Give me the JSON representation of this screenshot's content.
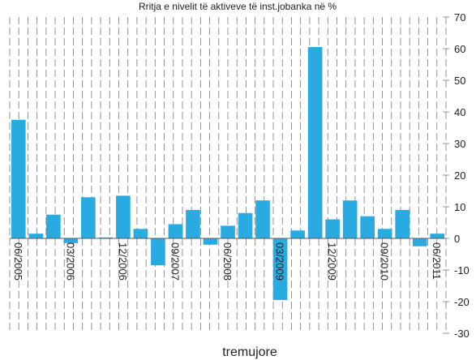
{
  "chart_data": {
    "type": "bar",
    "title": "Rritja e nivelit të aktiveve të inst.jobanka në %",
    "xlabel": "tremujore",
    "ylabel": "",
    "ylim": [
      -30,
      70
    ],
    "yticks": [
      70,
      60,
      50,
      40,
      30,
      20,
      10,
      0,
      -10,
      -20,
      -30
    ],
    "grid": true,
    "legend": "none",
    "bar_color": "#29abe2",
    "categories": [
      "06/2005",
      "09/2005",
      "12/2005",
      "03/2006",
      "06/2006",
      "09/2006",
      "12/2006",
      "03/2007",
      "06/2007",
      "09/2007",
      "12/2007",
      "03/2008",
      "06/2008",
      "09/2008",
      "12/2008",
      "03/2009",
      "06/2009",
      "09/2009",
      "12/2009",
      "03/2010",
      "06/2010",
      "09/2010",
      "12/2010",
      "03/2011",
      "06/2011"
    ],
    "tick_labels": [
      "06/2005",
      "",
      "",
      "03/2006",
      "",
      "",
      "12/2006",
      "",
      "",
      "09/2007",
      "",
      "",
      "06/2008",
      "",
      "",
      "03/2009",
      "",
      "",
      "12/2009",
      "",
      "",
      "09/2010",
      "",
      "",
      "06/2011"
    ],
    "values": [
      37.5,
      1.5,
      7.5,
      -1.5,
      13,
      0.3,
      13.5,
      3,
      -8.5,
      4.5,
      9,
      -2,
      4,
      8,
      12,
      -19.5,
      2.5,
      60.5,
      6,
      12,
      7,
      3,
      9,
      -2.5,
      1.5
    ]
  }
}
